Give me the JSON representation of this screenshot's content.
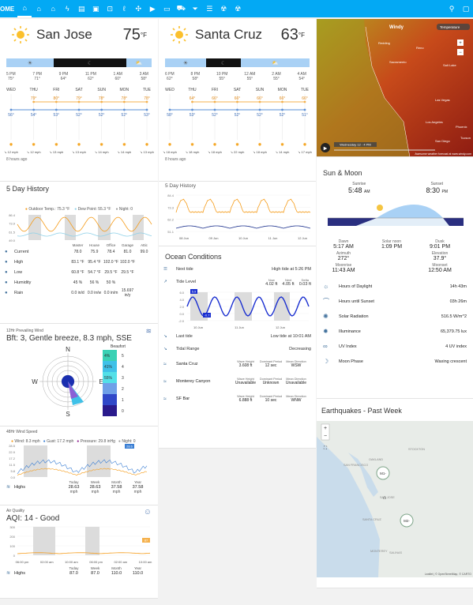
{
  "topbar": {
    "home_label": "OME",
    "tabs": [
      "home-icon",
      "house-icon",
      "house2-icon",
      "flash-icon",
      "chart-icon",
      "image-icon",
      "sensor-icon",
      "thermo-icon",
      "fan-icon",
      "tv-icon",
      "car-icon",
      "filter-icon",
      "server-icon",
      "radiation-icon",
      "radiation2-icon"
    ],
    "search_icon": "search-icon",
    "chat_icon": "chat-icon"
  },
  "sanjose": {
    "city": "San Jose",
    "temp": "75",
    "unit": "°F",
    "hours": [
      [
        "5 PM",
        "75°"
      ],
      [
        "7 PM",
        "71°"
      ],
      [
        "9 PM",
        "64°"
      ],
      [
        "11 PM",
        "62°"
      ],
      [
        "1 AM",
        "60°"
      ],
      [
        "3 AM",
        "58°"
      ]
    ],
    "days": [
      "WED",
      "THU",
      "FRI",
      "SAT",
      "SUN",
      "MON",
      "TUE"
    ],
    "highs": [
      "",
      "79°",
      "80°",
      "79°",
      "78°",
      "78°",
      "78°"
    ],
    "lows": [
      "56°",
      "54°",
      "53°",
      "52°",
      "52°",
      "52°",
      "53°"
    ],
    "winds": [
      "↘ 12 mph",
      "↘ 12 mph",
      "↘ 13 mph",
      "↘ 13 mph",
      "↘ 14 mph",
      "↘ 14 mph",
      "↘ 13 mph"
    ],
    "ago": "8 hours ago"
  },
  "santacruz": {
    "city": "Santa Cruz",
    "temp": "63",
    "unit": "°F",
    "hours": [
      [
        "6 PM",
        "62°"
      ],
      [
        "8 PM",
        "58°"
      ],
      [
        "10 PM",
        "55°"
      ],
      [
        "12 AM",
        "55°"
      ],
      [
        "2 AM",
        "55°"
      ],
      [
        "4 AM",
        "54°"
      ]
    ],
    "highs": [
      "",
      "64°",
      "66°",
      "66°",
      "66°",
      "66°",
      "66°"
    ],
    "lows": [
      "58°",
      "53°",
      "52°",
      "52°",
      "52°",
      "52°",
      "51°"
    ],
    "winds": [
      "↘ 18 mph",
      "↘ 18 mph",
      "↘ 18 mph",
      "↘ 22 mph",
      "↘ 18 mph",
      "↘ 14 mph",
      "↘ 17 mph"
    ],
    "ago": "8 hours ago"
  },
  "history": {
    "title": "5 Day History",
    "legend": [
      "Outdoor Temp.: 75.3 °F",
      "Dew Point: 55.3 °F",
      "Night: 0"
    ],
    "yticks": [
      "86.4",
      "73.9",
      "61.5",
      "49.0"
    ],
    "cols": [
      "Master",
      "House",
      "Office",
      "Garage",
      "Attic"
    ],
    "rows": [
      {
        "label": "Current",
        "vals": [
          "78.0",
          "75.9",
          "78.4",
          "81.0",
          "99.0"
        ]
      },
      {
        "label": "High",
        "vals": [
          "83.1 °F",
          "95.4 °F",
          "102.0 °F",
          "102.0 °F",
          ""
        ]
      },
      {
        "label": "Low",
        "vals": [
          "60.8 °F",
          "54.7 °F",
          "29.5 °F",
          "29.5 °F",
          ""
        ]
      },
      {
        "label": "Humidity",
        "vals": [
          "45 %",
          "56 %",
          "50 %",
          "",
          ""
        ]
      },
      {
        "label": "Rain",
        "vals": [
          "0.0 in/d",
          "0.0 in/w",
          "0.0 in/m",
          "15.697 in/y",
          ""
        ]
      }
    ],
    "hlcols": [
      "Today",
      "Week",
      "Month",
      "Year"
    ],
    "rain_cols": [
      "Day",
      "Week",
      "Month",
      "Year"
    ],
    "units_f": [
      "°F",
      "°F",
      "°F",
      "°F",
      "°F"
    ]
  },
  "wind": {
    "title": "12Hr Prevailing Wind",
    "value": "Bft: 3, Gentle breeze, 8.3 mph, SSE",
    "compass": [
      "N",
      "E",
      "S",
      "W"
    ],
    "beaufort_title": "Beaufort",
    "beaufort": [
      "4%",
      "41%",
      "55%",
      "",
      "",
      ""
    ],
    "beaufort_levels": [
      "5",
      "4",
      "3",
      "2",
      "1",
      "0"
    ]
  },
  "wind48": {
    "title": "48Hr Wind Speed",
    "legend": [
      "Wind: 8.3 mph",
      "Gust: 17.2 mph",
      "Pressure: 29.8 inHg",
      "Night: 0"
    ],
    "yticks": [
      "28.5",
      "22.9",
      "17.2",
      "11.5",
      "5.8",
      "0.0"
    ],
    "highs_label": "Highs",
    "highs_cols": [
      "Today",
      "Week",
      "Month",
      "Year"
    ],
    "highs_vals": [
      "28.63",
      "28.63",
      "37.58",
      "37.58"
    ],
    "highs_unit": "mph",
    "badge": "28.6"
  },
  "aqi": {
    "title": "Air Quality",
    "value": "AQI: 14 - Good",
    "yticks": [
      "300",
      "200",
      "100",
      "0"
    ],
    "xticks": [
      "06:00 pm",
      "02:00 am",
      "10:00 am",
      "06:00 pm",
      "02:00 am",
      "10:00 am"
    ],
    "highs_label": "Highs",
    "highs_cols": [
      "Today",
      "Week",
      "Month",
      "Year"
    ],
    "highs_vals": [
      "87.0",
      "87.0",
      "110.0",
      "110.0"
    ],
    "badge": "87"
  },
  "sc_history": {
    "title": "5 Day History",
    "yticks": [
      "84.4",
      "73.3",
      "62.2",
      "51.1"
    ],
    "xticks": [
      "08 Jun",
      "09 Jun",
      "10 Jun",
      "11 Jun",
      "12 Jun"
    ]
  },
  "ocean": {
    "title": "Ocean Conditions",
    "next_tide_label": "Next tide",
    "next_tide": "High tide at 5:26 PM",
    "tide_level_label": "Tide Level",
    "tide_cols": [
      "Now",
      "Next",
      "Delta"
    ],
    "tide_vals": [
      "4.02 ft",
      "4.05 ft",
      "0.03 ft"
    ],
    "tide_yticks": [
      "6.0",
      "4.0",
      "2.0",
      "0.0",
      "-2.0"
    ],
    "tide_badges": [
      "5.9",
      "-0.7"
    ],
    "tide_xticks": [
      "10 Jun",
      "11 Jun",
      "12 Jun"
    ],
    "last_tide_label": "Last tide",
    "last_tide": "Low tide at 10:01 AM",
    "tidal_range_label": "Tidal Range",
    "tidal_range": "Decreasing",
    "wave_cols": [
      "Wave Height",
      "Dominant Period",
      "Mean Direction"
    ],
    "waves": [
      {
        "name": "Santa Cruz",
        "vals": [
          "3.608 ft",
          "12 sec",
          "WSW"
        ]
      },
      {
        "name": "Monterey Canyon",
        "vals": [
          "Unavailable",
          "Unknown",
          "Unavailable"
        ]
      },
      {
        "name": "SF Bar",
        "vals": [
          "6.888 ft",
          "10 sec",
          "WNW"
        ]
      }
    ]
  },
  "map": {
    "windy": "Windy",
    "temp_label": "Temperature",
    "places": [
      "Redding",
      "Reno",
      "Sacramento",
      "Salt Lake",
      "Las Vegas",
      "Los Angeles",
      "San Diego",
      "Phoenix",
      "Tucson"
    ],
    "date": "Wednesday 12 - 4 PM",
    "footer": "Awesome weather forecast at www.windy.com"
  },
  "sunmoon": {
    "title": "Sun & Moon",
    "sunrise_label": "Sunrise",
    "sunrise": "5:48",
    "sunrise_ampm": "AM",
    "sunset_label": "Sunset",
    "sunset": "8:30",
    "sunset_ampm": "PM",
    "dawn_label": "Dawn",
    "dawn": "5:17 AM",
    "noon_label": "Solar noon",
    "noon": "1:09 PM",
    "dusk_label": "Dusk",
    "dusk": "9:01 PM",
    "azimuth_label": "Azimuth",
    "azimuth": "272°",
    "elevation_label": "Elevation",
    "elevation": "37.9°",
    "moonrise_label": "Moonrise",
    "moonrise": "11:43 AM",
    "moonset_label": "Moonset",
    "moonset": "12:50 AM",
    "rows": [
      {
        "icon": "sun-clock-icon",
        "label": "Hours of Daylight",
        "value": "14h 43m"
      },
      {
        "icon": "sunset-icon",
        "label": "Hours until Sunset",
        "value": "03h 26m"
      },
      {
        "icon": "solar-icon",
        "label": "Solar Radiation",
        "value": "516.5 W/m^2"
      },
      {
        "icon": "bright-icon",
        "label": "Illuminance",
        "value": "65,379.75 lux"
      },
      {
        "icon": "glasses-icon",
        "label": "UV Index",
        "value": "4 UV index"
      },
      {
        "icon": "moon-icon",
        "label": "Moon Phase",
        "value": "Waxing crescent"
      }
    ]
  },
  "quakes": {
    "title": "Earthquakes - Past Week",
    "places": [
      "SAN FRANCISCO",
      "OAKLAND",
      "STOCKTON",
      "SAN JOSE",
      "SANTA CRUZ",
      "SALINAS",
      "MONTEREY"
    ],
    "markers": [
      "M1-",
      "M2-"
    ],
    "attribution": "Leaflet | © OpenStreetMap, © CARTO"
  }
}
